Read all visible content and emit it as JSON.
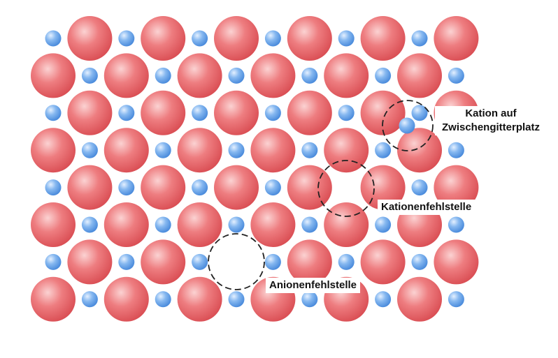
{
  "diagram": {
    "lattice": {
      "rows": 8,
      "columns": 12,
      "anion_color": "#e85a5e",
      "cation_color": "#5a9ee8",
      "anion_name": "anion",
      "cation_name": "cation"
    },
    "defects": [
      {
        "type": "interstitial-cation",
        "line1": "Kation auf",
        "line2": "Zwischengitterplatz"
      },
      {
        "type": "cation-vacancy",
        "label": "Kationenfehlstelle"
      },
      {
        "type": "anion-vacancy",
        "label": "Anionenfehlstelle"
      }
    ]
  }
}
